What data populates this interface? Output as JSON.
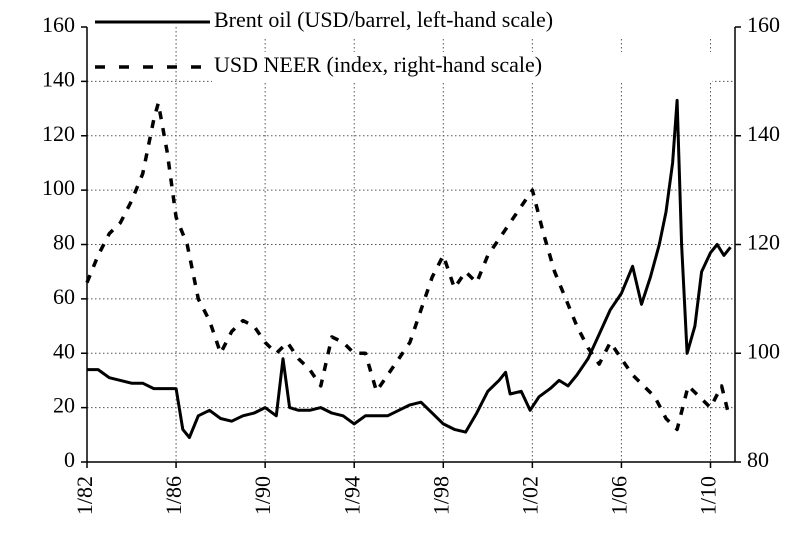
{
  "chart_data": {
    "type": "line",
    "xlim": [
      1982,
      2011.1
    ],
    "xticks": [
      {
        "value": 1982,
        "label": "1/82"
      },
      {
        "value": 1986,
        "label": "1/86"
      },
      {
        "value": 1990,
        "label": "1/90"
      },
      {
        "value": 1994,
        "label": "1/94"
      },
      {
        "value": 1998,
        "label": "1/98"
      },
      {
        "value": 2002,
        "label": "1/02"
      },
      {
        "value": 2006,
        "label": "1/06"
      },
      {
        "value": 2010,
        "label": "1/10"
      }
    ],
    "ylim": [
      0,
      160
    ],
    "yticks": [
      0,
      20,
      40,
      60,
      80,
      100,
      120,
      140,
      160
    ],
    "y2lim": [
      80,
      160
    ],
    "y2ticks": [
      80,
      100,
      120,
      140,
      160
    ],
    "grid": true,
    "legend": "top",
    "series": [
      {
        "name": "Brent oil (USD/barrel, left-hand scale)",
        "color": "#000000",
        "dash": "solid",
        "x": [
          1982,
          1982.5,
          1983,
          1983.5,
          1984,
          1984.5,
          1985,
          1985.5,
          1986,
          1986.3,
          1986.6,
          1987,
          1987.5,
          1988,
          1988.5,
          1989,
          1989.5,
          1990,
          1990.5,
          1990.8,
          1991.1,
          1991.5,
          1992,
          1992.5,
          1993,
          1993.5,
          1994,
          1994.5,
          1995,
          1995.5,
          1996,
          1996.5,
          1997,
          1997.5,
          1998,
          1998.5,
          1999,
          1999.5,
          2000,
          2000.5,
          2000.8,
          2001,
          2001.5,
          2001.9,
          2002.3,
          2002.8,
          2003.2,
          2003.6,
          2004,
          2004.5,
          2005,
          2005.5,
          2006,
          2006.5,
          2006.9,
          2007.3,
          2007.7,
          2008,
          2008.3,
          2008.5,
          2008.7,
          2008.95,
          2009.3,
          2009.6,
          2010,
          2010.3,
          2010.6,
          2010.9
        ],
        "values": [
          34,
          34,
          31,
          30,
          29,
          29,
          27,
          27,
          27,
          12,
          9,
          17,
          19,
          16,
          15,
          17,
          18,
          20,
          17,
          38,
          20,
          19,
          19,
          20,
          18,
          17,
          14,
          17,
          17,
          17,
          19,
          21,
          22,
          18,
          14,
          12,
          11,
          18,
          26,
          30,
          33,
          25,
          26,
          19,
          24,
          27,
          30,
          28,
          32,
          38,
          47,
          56,
          62,
          72,
          58,
          68,
          80,
          92,
          110,
          133,
          80,
          40,
          50,
          70,
          77,
          80,
          76,
          79
        ]
      },
      {
        "name": "USD NEER (index, right-hand scale)",
        "color": "#000000",
        "dash": "dashed",
        "axis": "y2",
        "x": [
          1982,
          1982.5,
          1983,
          1983.5,
          1984,
          1984.5,
          1985,
          1985.2,
          1985.6,
          1986,
          1986.5,
          1987,
          1987.5,
          1988,
          1988.5,
          1989,
          1989.5,
          1990,
          1990.5,
          1991,
          1991.5,
          1992,
          1992.5,
          1993,
          1993.5,
          1994,
          1994.5,
          1995,
          1995.5,
          1996,
          1996.5,
          1997,
          1997.5,
          1998,
          1998.5,
          1999,
          1999.5,
          2000,
          2000.5,
          2001,
          2001.5,
          2002,
          2002.5,
          2003,
          2003.5,
          2004,
          2004.5,
          2005,
          2005.5,
          2006,
          2006.5,
          2007,
          2007.5,
          2008,
          2008.5,
          2009,
          2009.5,
          2010,
          2010.5,
          2010.8
        ],
        "values": [
          113,
          118,
          122,
          124,
          128,
          133,
          143,
          146,
          137,
          125,
          120,
          110,
          106,
          100,
          104,
          106,
          105,
          102,
          100,
          102,
          99,
          97,
          94,
          103,
          102,
          100,
          100,
          93,
          96,
          99,
          102,
          108,
          114,
          118,
          112,
          115,
          113,
          118,
          121,
          124,
          127,
          130,
          122,
          115,
          110,
          105,
          101,
          98,
          102,
          99,
          96,
          94,
          92,
          88,
          86,
          94,
          92,
          90,
          94,
          89
        ]
      }
    ]
  }
}
